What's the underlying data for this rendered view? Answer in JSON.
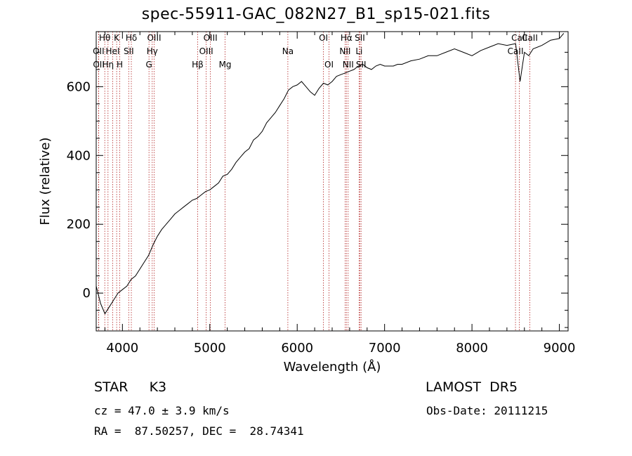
{
  "title": "spec-55911-GAC_082N27_B1_sp15-021.fits",
  "footer": {
    "classification": "STAR     K3",
    "survey": "LAMOST  DR5",
    "cz": "cz = 47.0 ± 3.9 km/s",
    "obs_date": "Obs-Date: 20111215",
    "coords": "RA =  87.50257, DEC =  28.74341"
  },
  "colors": {
    "spectrum": "#000000",
    "line_marker": "#b22222",
    "axis": "#000000"
  },
  "chart_data": {
    "type": "line",
    "xlabel": "Wavelength (Å)",
    "ylabel": "Flux (relative)",
    "xlim": [
      3700,
      9100
    ],
    "ylim": [
      -110,
      760
    ],
    "xticks": [
      4000,
      5000,
      6000,
      7000,
      8000,
      9000
    ],
    "yticks": [
      0,
      200,
      400,
      600
    ],
    "grid": false,
    "series": [
      {
        "x": [
          3700,
          3750,
          3800,
          3850,
          3900,
          3950,
          4000,
          4050,
          4100,
          4150,
          4200,
          4250,
          4300,
          4350,
          4400,
          4450,
          4500,
          4550,
          4600,
          4650,
          4700,
          4750,
          4800,
          4850,
          4900,
          4950,
          5000,
          5050,
          5100,
          5150,
          5200,
          5250,
          5300,
          5350,
          5400,
          5450,
          5500,
          5550,
          5600,
          5650,
          5700,
          5750,
          5800,
          5850,
          5900,
          5950,
          6000,
          6050,
          6100,
          6150,
          6200,
          6250,
          6300,
          6350,
          6400,
          6450,
          6500,
          6550,
          6600,
          6650,
          6700,
          6750,
          6800,
          6850,
          6900,
          6950,
          7000,
          7050,
          7100,
          7150,
          7200,
          7300,
          7400,
          7500,
          7600,
          7700,
          7800,
          7900,
          8000,
          8100,
          8200,
          8300,
          8400,
          8500,
          8550,
          8600,
          8650,
          8700,
          8800,
          8900,
          9000,
          9050
        ],
        "y": [
          20,
          -30,
          -60,
          -40,
          -20,
          0,
          10,
          20,
          40,
          50,
          70,
          90,
          110,
          140,
          165,
          185,
          200,
          215,
          230,
          240,
          250,
          260,
          270,
          275,
          285,
          295,
          300,
          310,
          320,
          340,
          345,
          360,
          380,
          395,
          410,
          420,
          445,
          455,
          470,
          495,
          510,
          525,
          545,
          565,
          590,
          600,
          605,
          615,
          600,
          585,
          575,
          595,
          610,
          605,
          615,
          630,
          635,
          640,
          645,
          650,
          660,
          665,
          655,
          650,
          660,
          665,
          660,
          660,
          660,
          665,
          665,
          675,
          680,
          690,
          690,
          700,
          710,
          700,
          690,
          705,
          715,
          725,
          720,
          725,
          615,
          700,
          690,
          710,
          720,
          735,
          740,
          755
        ]
      }
    ],
    "annotations": [
      {
        "label": "Hθ",
        "x": 3798
      },
      {
        "label": "K",
        "x": 3934
      },
      {
        "label": "Hδ",
        "x": 4102
      },
      {
        "label": "OIII",
        "x": 4363
      },
      {
        "label": "OIII",
        "x": 5007
      },
      {
        "label": "OI",
        "x": 6300
      },
      {
        "label": "Hα",
        "x": 6563
      },
      {
        "label": "SII",
        "x": 6717
      },
      {
        "label": "CaII",
        "x": 8542
      },
      {
        "label": "OII",
        "x": 3727
      },
      {
        "label": "HeI",
        "x": 3889
      },
      {
        "label": "SII",
        "x": 4072
      },
      {
        "label": "Hγ",
        "x": 4341
      },
      {
        "label": "OIII",
        "x": 4959
      },
      {
        "label": "Na",
        "x": 5893
      },
      {
        "label": "NII",
        "x": 6548
      },
      {
        "label": "Li",
        "x": 6708
      },
      {
        "label": "CaII",
        "x": 8498
      },
      {
        "label": "OII",
        "x": 3729
      },
      {
        "label": "Hη",
        "x": 3835
      },
      {
        "label": "H",
        "x": 3969
      },
      {
        "label": "G",
        "x": 4304
      },
      {
        "label": "Hβ",
        "x": 4861
      },
      {
        "label": "Mg",
        "x": 5175
      },
      {
        "label": "OI",
        "x": 6364
      },
      {
        "label": "NII",
        "x": 6583
      },
      {
        "label": "SII",
        "x": 6731
      },
      {
        "label": "CaII",
        "x": 8662
      }
    ]
  }
}
